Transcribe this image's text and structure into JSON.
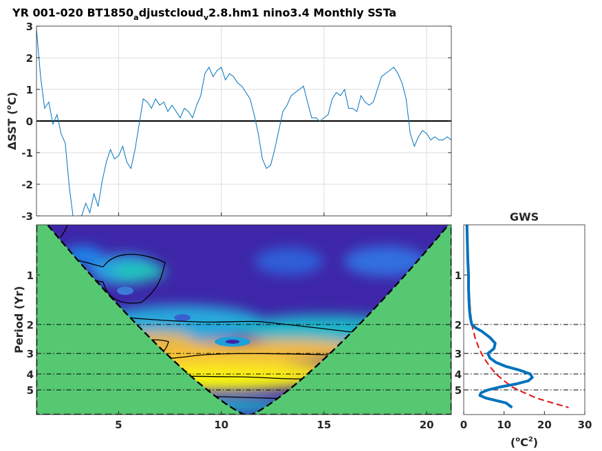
{
  "title": {
    "part1": "YR 001-020 BT1850",
    "sub1": "a",
    "part2": "djustcloud",
    "sub2": "v",
    "part3": "2.8.hm1 nino3.4 Monthly SSTa"
  },
  "colors": {
    "series": "#0072bd",
    "zero_line": "#000000",
    "coi_fill": "#56c872",
    "power_low": "#3e26a8",
    "power_high": "#f9fb0e",
    "gws": "#0072bd",
    "significance": "#e02020"
  },
  "chart_data": [
    {
      "type": "line",
      "name": "sst-anomaly-timeseries",
      "ylabel_prefix": "ΔSST (",
      "ylabel_unit": "o",
      "ylabel_suffix": "C)",
      "xlim": [
        1,
        21.2
      ],
      "ylim": [
        -3,
        3
      ],
      "yticks": [
        -3,
        -2,
        -1,
        0,
        1,
        2,
        3
      ],
      "xticks": [
        5,
        10,
        15,
        20
      ],
      "grid": true,
      "x": [
        1.0,
        1.2,
        1.4,
        1.6,
        1.8,
        2.0,
        2.2,
        2.4,
        2.6,
        2.8,
        3.0,
        3.2,
        3.4,
        3.6,
        3.8,
        4.0,
        4.2,
        4.4,
        4.6,
        4.8,
        5.0,
        5.2,
        5.4,
        5.6,
        5.8,
        6.0,
        6.2,
        6.4,
        6.6,
        6.8,
        7.0,
        7.2,
        7.4,
        7.6,
        7.8,
        8.0,
        8.2,
        8.4,
        8.6,
        8.8,
        9.0,
        9.2,
        9.4,
        9.6,
        9.8,
        10.0,
        10.2,
        10.4,
        10.6,
        10.8,
        11.0,
        11.2,
        11.4,
        11.6,
        11.8,
        12.0,
        12.2,
        12.4,
        12.6,
        12.8,
        13.0,
        13.2,
        13.4,
        13.6,
        13.8,
        14.0,
        14.2,
        14.4,
        14.6,
        14.8,
        15.0,
        15.2,
        15.4,
        15.6,
        15.8,
        16.0,
        16.2,
        16.4,
        16.6,
        16.8,
        17.0,
        17.2,
        17.4,
        17.6,
        17.8,
        18.0,
        18.2,
        18.4,
        18.6,
        18.8,
        19.0,
        19.2,
        19.4,
        19.6,
        19.8,
        20.0,
        20.2,
        20.4,
        20.6,
        20.8,
        21.0,
        21.2
      ],
      "y": [
        2.9,
        1.4,
        0.4,
        0.6,
        -0.1,
        0.2,
        -0.4,
        -0.7,
        -2.1,
        -3.1,
        -3.0,
        -3.0,
        -2.6,
        -2.9,
        -2.3,
        -2.7,
        -1.9,
        -1.3,
        -0.9,
        -1.2,
        -1.1,
        -0.8,
        -1.3,
        -1.5,
        -0.9,
        -0.1,
        0.7,
        0.6,
        0.4,
        0.7,
        0.5,
        0.6,
        0.3,
        0.5,
        0.3,
        0.1,
        0.4,
        0.3,
        0.1,
        0.5,
        0.8,
        1.5,
        1.7,
        1.4,
        1.6,
        1.7,
        1.3,
        1.5,
        1.4,
        1.2,
        1.1,
        0.9,
        0.7,
        0.2,
        -0.4,
        -1.2,
        -1.5,
        -1.4,
        -0.9,
        -0.3,
        0.3,
        0.5,
        0.8,
        0.9,
        1.0,
        1.1,
        0.6,
        0.1,
        0.1,
        0.0,
        0.1,
        0.2,
        0.7,
        0.9,
        0.8,
        1.0,
        0.4,
        0.4,
        0.3,
        0.8,
        0.6,
        0.5,
        0.6,
        1.0,
        1.4,
        1.5,
        1.6,
        1.7,
        1.5,
        1.2,
        0.7,
        -0.4,
        -0.8,
        -0.5,
        -0.3,
        -0.4,
        -0.6,
        -0.5,
        -0.6,
        -0.6,
        -0.5,
        -0.6
      ]
    },
    {
      "type": "heatmap",
      "name": "wavelet-power-spectrum",
      "ylabel": "Period (Yr)",
      "xlim": [
        1,
        21.2
      ],
      "xticks": [
        5,
        10,
        15,
        20
      ],
      "yticks": [
        1,
        2,
        3,
        4,
        5
      ],
      "reference_periods": [
        2,
        3,
        4,
        5
      ],
      "color_range": [
        "low",
        "high"
      ]
    },
    {
      "type": "line",
      "name": "global-wavelet-spectrum",
      "title": "GWS",
      "xlabel_prefix": "(",
      "xlabel_unit": "o",
      "xlabel_base": "C",
      "xlabel_power": "2",
      "xlabel_suffix": ")",
      "xlim": [
        0,
        30
      ],
      "xticks": [
        0,
        10,
        20,
        30
      ],
      "yticks": [
        1,
        2,
        3,
        4,
        5
      ],
      "series": [
        {
          "style": "solid",
          "period": [
            0.3,
            0.5,
            0.8,
            1.0,
            1.2,
            1.4,
            1.6,
            1.8,
            2.0,
            2.1,
            2.2,
            2.4,
            2.6,
            2.8,
            3.0,
            3.2,
            3.4,
            3.6,
            3.8,
            4.0,
            4.2,
            4.4,
            4.6,
            4.8,
            5.0,
            5.2,
            5.4,
            5.6,
            5.8,
            6.0,
            6.4
          ],
          "power": [
            0.5,
            0.8,
            1.0,
            1.2,
            1.2,
            1.3,
            1.4,
            1.6,
            2.0,
            3.0,
            4.5,
            6.5,
            7.8,
            7.5,
            6.0,
            6.5,
            8.0,
            10.5,
            14.0,
            16.5,
            17.0,
            16.0,
            13.0,
            9.0,
            6.0,
            4.3,
            4.0,
            5.5,
            8.0,
            10.5,
            12.0
          ]
        },
        {
          "style": "dashed",
          "period": [
            0.3,
            0.8,
            1.2,
            1.6,
            2.0,
            2.4,
            2.8,
            3.2,
            3.6,
            4.0,
            4.4,
            4.8,
            5.2,
            5.6,
            6.0,
            6.4
          ],
          "power": [
            0.8,
            1.0,
            1.3,
            1.6,
            2.0,
            2.8,
            3.8,
            5.0,
            6.5,
            8.0,
            10.0,
            12.0,
            15.0,
            18.0,
            22.0,
            26.0
          ]
        }
      ]
    }
  ]
}
